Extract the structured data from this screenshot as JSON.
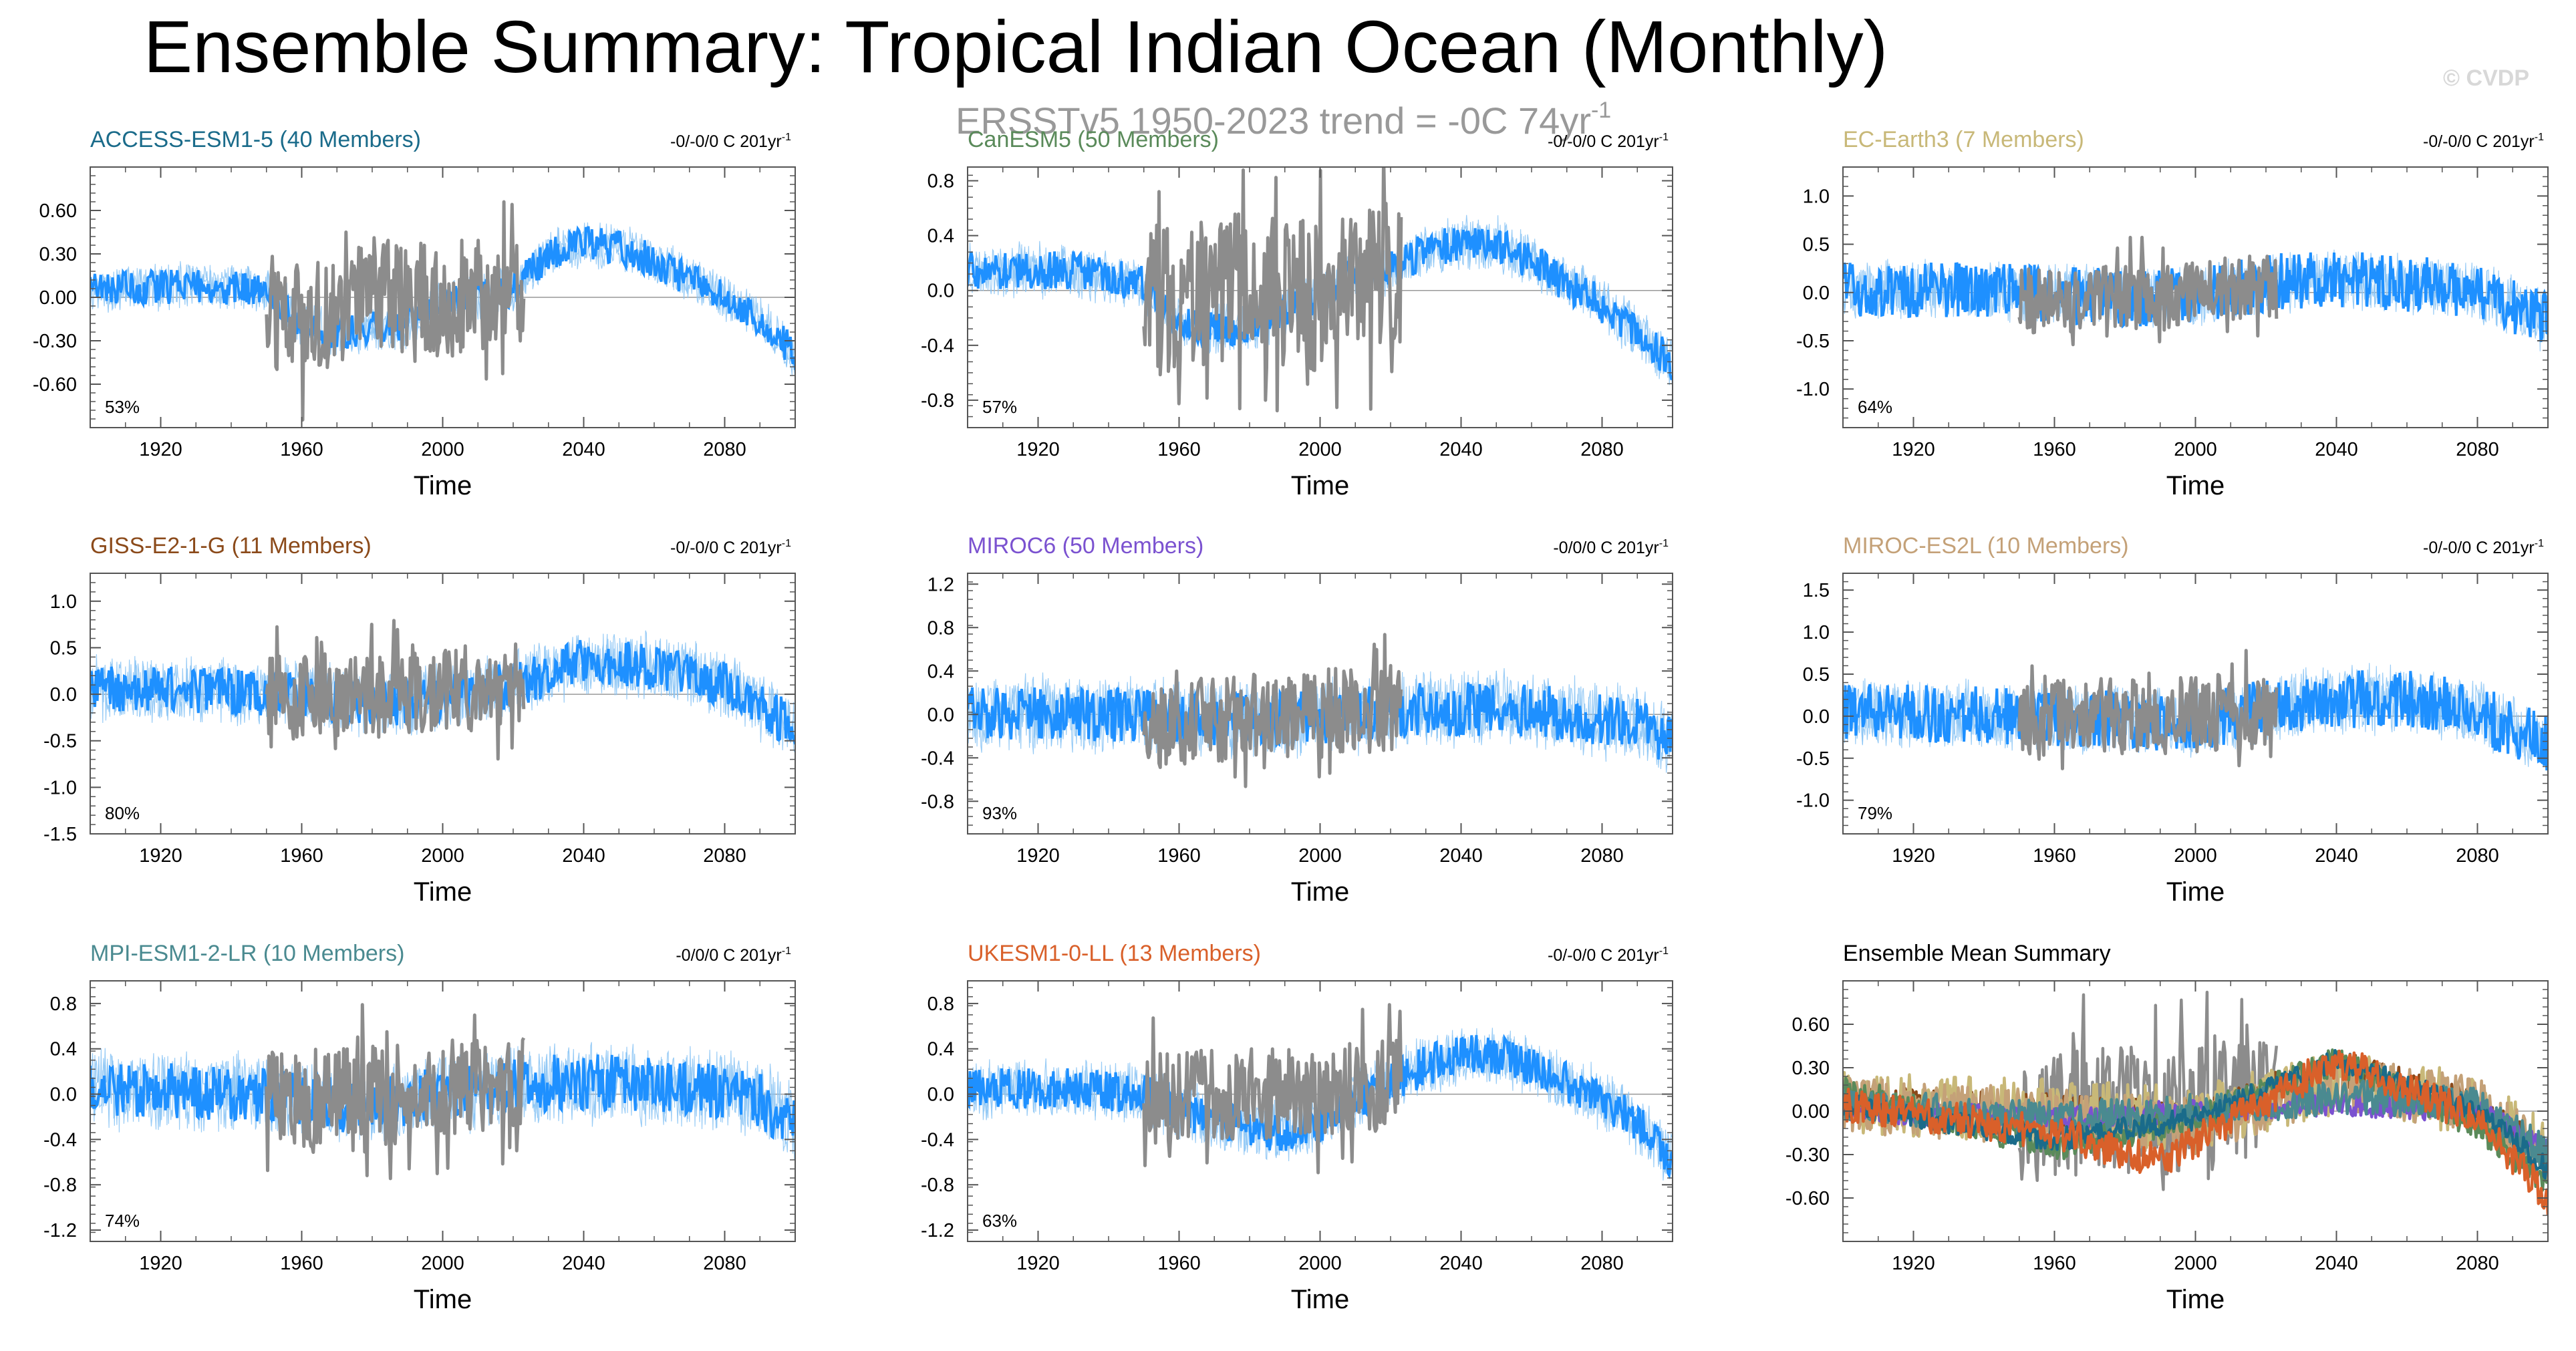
{
  "title": "Ensemble Summary: Tropical Indian Ocean (Monthly)",
  "subtitle": "ERSSTv5 1950-2023 trend = -0C 74yr",
  "subtitle_sup": "-1",
  "watermark": "© CVDP",
  "colors": {
    "ensemble_spread": "#87c3f5",
    "ensemble_mean": "#1e90ff",
    "observations": "#8c8c8c",
    "frame": "#555555",
    "zero_line": "#999999"
  },
  "chart_data": [
    {
      "type": "line",
      "id": "access",
      "title": "ACCESS-ESM1-5 (40 Members)",
      "title_color": "#1a6b8a",
      "trend_label": "-0/-0/0 C 201yr",
      "trend_sup": "-1",
      "percent": "53%",
      "xlabel": "Time",
      "ylabel": "",
      "xlim": [
        1900,
        2100
      ],
      "ylim": [
        -0.9,
        0.9
      ],
      "xticks": [
        "1920",
        "1960",
        "2000",
        "2040",
        "2080"
      ],
      "yticks": [
        -0.6,
        -0.3,
        0.0,
        0.3,
        0.6
      ],
      "ytick_labels": [
        "-0.60",
        "-0.30",
        "0.00",
        "0.30",
        "0.60"
      ],
      "series": [
        {
          "name": "Ensemble mean",
          "x": [
            1900,
            1930,
            1950,
            1955,
            1960,
            1970,
            1980,
            1990,
            2000,
            2010,
            2020,
            2030,
            2040,
            2050,
            2060,
            2070,
            2080,
            2090,
            2100
          ],
          "values": [
            0.05,
            0.08,
            0.05,
            -0.05,
            -0.2,
            -0.25,
            -0.22,
            -0.2,
            -0.05,
            0.0,
            0.05,
            0.3,
            0.38,
            0.35,
            0.25,
            0.12,
            0.0,
            -0.15,
            -0.4
          ]
        },
        {
          "name": "ERSSTv5",
          "x": [
            1950,
            1960,
            1970,
            1980,
            1990,
            2000,
            2010,
            2020,
            2023
          ],
          "values": [
            -0.1,
            -0.2,
            -0.05,
            0.0,
            0.02,
            -0.05,
            0.05,
            0.1,
            0.05
          ],
          "amplitude": 0.4
        }
      ],
      "spread": 0.18,
      "noise": 0.12,
      "seed": 11
    },
    {
      "type": "line",
      "id": "canesm",
      "title": "CanESM5 (50 Members)",
      "title_color": "#5a8a5a",
      "trend_label": "-0/-0/0 C 201yr",
      "trend_sup": "-1",
      "percent": "57%",
      "xlabel": "Time",
      "ylabel": "",
      "xlim": [
        1900,
        2100
      ],
      "ylim": [
        -1.0,
        0.9
      ],
      "xticks": [
        "1920",
        "1960",
        "2000",
        "2040",
        "2080"
      ],
      "yticks": [
        -0.8,
        -0.4,
        0.0,
        0.4,
        0.8
      ],
      "ytick_labels": [
        "-0.8",
        "-0.4",
        "0.0",
        "0.4",
        "0.8"
      ],
      "series": [
        {
          "name": "Ensemble mean",
          "x": [
            1900,
            1930,
            1950,
            1960,
            1970,
            1980,
            1990,
            2000,
            2010,
            2020,
            2030,
            2040,
            2050,
            2060,
            2070,
            2080,
            2090,
            2100
          ],
          "values": [
            0.15,
            0.15,
            0.05,
            -0.25,
            -0.3,
            -0.25,
            -0.15,
            -0.05,
            0.1,
            0.15,
            0.3,
            0.35,
            0.35,
            0.2,
            0.05,
            -0.1,
            -0.3,
            -0.55
          ]
        },
        {
          "name": "ERSSTv5",
          "x": [
            1950,
            1960,
            1970,
            1980,
            1990,
            2000,
            2010,
            2020,
            2023
          ],
          "values": [
            -0.05,
            -0.1,
            0.0,
            0.05,
            0.0,
            -0.05,
            0.05,
            0.1,
            0.05
          ],
          "amplitude": 0.55
        }
      ],
      "spread": 0.22,
      "noise": 0.14,
      "seed": 23
    },
    {
      "type": "line",
      "id": "ecearth",
      "title": "EC-Earth3 (7 Members)",
      "title_color": "#c8b878",
      "trend_label": "-0/-0/0 C 201yr",
      "trend_sup": "-1",
      "percent": "64%",
      "xlabel": "Time",
      "ylabel": "",
      "xlim": [
        1900,
        2100
      ],
      "ylim": [
        -1.4,
        1.3
      ],
      "xticks": [
        "1920",
        "1960",
        "2000",
        "2040",
        "2080"
      ],
      "yticks": [
        -1.0,
        -0.5,
        0.0,
        0.5,
        1.0
      ],
      "ytick_labels": [
        "-1.0",
        "-0.5",
        "0.0",
        "0.5",
        "1.0"
      ],
      "series": [
        {
          "name": "Ensemble mean",
          "x": [
            1900,
            1950,
            1980,
            2000,
            2020,
            2040,
            2060,
            2080,
            2100
          ],
          "values": [
            0.05,
            0.0,
            -0.05,
            -0.05,
            0.1,
            0.15,
            0.1,
            0.0,
            -0.3
          ]
        },
        {
          "name": "ERSSTv5",
          "x": [
            1950,
            1970,
            1990,
            2010,
            2023
          ],
          "values": [
            -0.1,
            -0.05,
            -0.05,
            0.05,
            0.05
          ],
          "amplitude": 0.35
        }
      ],
      "spread": 0.35,
      "noise": 0.3,
      "seed": 37
    },
    {
      "type": "line",
      "id": "giss",
      "title": "GISS-E2-1-G (11 Members)",
      "title_color": "#8b4a1a",
      "trend_label": "-0/-0/0 C 201yr",
      "trend_sup": "-1",
      "percent": "80%",
      "xlabel": "Time",
      "ylabel": "",
      "xlim": [
        1900,
        2100
      ],
      "ylim": [
        -1.5,
        1.3
      ],
      "xticks": [
        "1920",
        "1960",
        "2000",
        "2040",
        "2080"
      ],
      "yticks": [
        -1.5,
        -1.0,
        -0.5,
        0.0,
        0.5,
        1.0
      ],
      "ytick_labels": [
        "-1.5",
        "-1.0",
        "-0.5",
        "0.0",
        "0.5",
        "1.0"
      ],
      "series": [
        {
          "name": "Ensemble mean",
          "x": [
            1900,
            1930,
            1960,
            1980,
            2000,
            2020,
            2040,
            2060,
            2080,
            2100
          ],
          "values": [
            0.05,
            0.05,
            0.0,
            -0.1,
            -0.05,
            0.1,
            0.35,
            0.3,
            0.1,
            -0.35
          ]
        },
        {
          "name": "ERSSTv5",
          "x": [
            1950,
            1970,
            1990,
            2010,
            2023
          ],
          "values": [
            -0.05,
            0.0,
            0.0,
            0.05,
            0.1
          ],
          "amplitude": 0.45
        }
      ],
      "spread": 0.4,
      "noise": 0.25,
      "seed": 41
    },
    {
      "type": "line",
      "id": "miroc6",
      "title": "MIROC6 (50 Members)",
      "title_color": "#7b52d0",
      "trend_label": "-0/0/0 C 201yr",
      "trend_sup": "-1",
      "percent": "93%",
      "xlabel": "Time",
      "ylabel": "",
      "xlim": [
        1900,
        2100
      ],
      "ylim": [
        -1.1,
        1.3
      ],
      "xticks": [
        "1920",
        "1960",
        "2000",
        "2040",
        "2080"
      ],
      "yticks": [
        -0.8,
        -0.4,
        0.0,
        0.4,
        0.8,
        1.2
      ],
      "ytick_labels": [
        "-0.8",
        "-0.4",
        "0.0",
        "0.4",
        "0.8",
        "1.2"
      ],
      "series": [
        {
          "name": "Ensemble mean",
          "x": [
            1900,
            1950,
            1970,
            1990,
            2010,
            2030,
            2050,
            2070,
            2090,
            2100
          ],
          "values": [
            0.0,
            0.0,
            -0.05,
            -0.05,
            0.0,
            0.05,
            0.05,
            0.0,
            -0.1,
            -0.25
          ]
        },
        {
          "name": "ERSSTv5",
          "x": [
            1950,
            1970,
            1990,
            2010,
            2023
          ],
          "values": [
            -0.1,
            -0.05,
            0.0,
            0.05,
            0.05
          ],
          "amplitude": 0.4
        }
      ],
      "spread": 0.4,
      "noise": 0.25,
      "seed": 53
    },
    {
      "type": "line",
      "id": "mirocs",
      "title": "MIROC-ES2L (10 Members)",
      "title_color": "#c4a178",
      "trend_label": "-0/-0/0 C 201yr",
      "trend_sup": "-1",
      "percent": "79%",
      "xlabel": "Time",
      "ylabel": "",
      "xlim": [
        1900,
        2100
      ],
      "ylim": [
        -1.4,
        1.7
      ],
      "xticks": [
        "1920",
        "1960",
        "2000",
        "2040",
        "2080"
      ],
      "yticks": [
        -1.0,
        -0.5,
        0.0,
        0.5,
        1.0,
        1.5
      ],
      "ytick_labels": [
        "-1.0",
        "-0.5",
        "0.0",
        "0.5",
        "1.0",
        "1.5"
      ],
      "series": [
        {
          "name": "Ensemble mean",
          "x": [
            1900,
            1950,
            1980,
            2000,
            2020,
            2040,
            2060,
            2080,
            2100
          ],
          "values": [
            0.05,
            0.0,
            -0.05,
            -0.1,
            0.1,
            0.2,
            0.2,
            0.05,
            -0.35
          ]
        },
        {
          "name": "ERSSTv5",
          "x": [
            1950,
            1970,
            1990,
            2010,
            2023
          ],
          "values": [
            -0.05,
            0.0,
            0.0,
            0.05,
            0.05
          ],
          "amplitude": 0.45
        }
      ],
      "spread": 0.45,
      "noise": 0.35,
      "seed": 67
    },
    {
      "type": "line",
      "id": "mpi",
      "title": "MPI-ESM1-2-LR (10 Members)",
      "title_color": "#4a8a90",
      "trend_label": "-0/0/0 C 201yr",
      "trend_sup": "-1",
      "percent": "74%",
      "xlabel": "Time",
      "ylabel": "",
      "xlim": [
        1900,
        2100
      ],
      "ylim": [
        -1.3,
        1.0
      ],
      "xticks": [
        "1920",
        "1960",
        "2000",
        "2040",
        "2080"
      ],
      "yticks": [
        -1.2,
        -0.8,
        -0.4,
        0.0,
        0.4,
        0.8
      ],
      "ytick_labels": [
        "-1.2",
        "-0.8",
        "-0.4",
        "0.0",
        "0.4",
        "0.8"
      ],
      "series": [
        {
          "name": "Ensemble mean",
          "x": [
            1900,
            1950,
            1970,
            1990,
            2010,
            2030,
            2050,
            2070,
            2090,
            2100
          ],
          "values": [
            0.05,
            0.0,
            -0.1,
            -0.05,
            0.05,
            0.1,
            0.1,
            0.05,
            -0.05,
            -0.3
          ]
        },
        {
          "name": "ERSSTv5",
          "x": [
            1950,
            1970,
            1990,
            2010,
            2023
          ],
          "values": [
            -0.05,
            0.0,
            0.0,
            0.05,
            0.05
          ],
          "amplitude": 0.45
        }
      ],
      "spread": 0.4,
      "noise": 0.25,
      "seed": 71
    },
    {
      "type": "line",
      "id": "ukesm",
      "title": "UKESM1-0-LL (13 Members)",
      "title_color": "#d9602a",
      "trend_label": "-0/-0/0 C 201yr",
      "trend_sup": "-1",
      "percent": "63%",
      "xlabel": "Time",
      "ylabel": "",
      "xlim": [
        1900,
        2100
      ],
      "ylim": [
        -1.3,
        1.0
      ],
      "xticks": [
        "1920",
        "1960",
        "2000",
        "2040",
        "2080"
      ],
      "yticks": [
        -1.2,
        -0.8,
        -0.4,
        0.0,
        0.4,
        0.8
      ],
      "ytick_labels": [
        "-1.2",
        "-0.8",
        "-0.4",
        "0.0",
        "0.4",
        "0.8"
      ],
      "series": [
        {
          "name": "Ensemble mean",
          "x": [
            1900,
            1930,
            1950,
            1960,
            1975,
            1990,
            2000,
            2010,
            2020,
            2030,
            2040,
            2050,
            2060,
            2070,
            2080,
            2090,
            2100
          ],
          "values": [
            0.05,
            0.05,
            0.0,
            -0.15,
            -0.25,
            -0.35,
            -0.25,
            -0.05,
            0.1,
            0.25,
            0.35,
            0.35,
            0.25,
            0.1,
            -0.05,
            -0.25,
            -0.6
          ]
        },
        {
          "name": "ERSSTv5",
          "x": [
            1950,
            1970,
            1990,
            2010,
            2023
          ],
          "values": [
            -0.05,
            0.0,
            0.0,
            0.05,
            0.1
          ],
          "amplitude": 0.4
        }
      ],
      "spread": 0.3,
      "noise": 0.18,
      "seed": 83
    },
    {
      "type": "line",
      "id": "summary",
      "title": "Ensemble Mean Summary",
      "title_color": "#000000",
      "trend_label": "",
      "trend_sup": "",
      "percent": "",
      "xlabel": "Time",
      "ylabel": "",
      "xlim": [
        1900,
        2100
      ],
      "ylim": [
        -0.9,
        0.9
      ],
      "xticks": [
        "1920",
        "1960",
        "2000",
        "2040",
        "2080"
      ],
      "yticks": [
        -0.6,
        -0.3,
        0.0,
        0.3,
        0.6
      ],
      "ytick_labels": [
        "-0.60",
        "-0.30",
        "0.00",
        "0.30",
        "0.60"
      ],
      "series": [
        {
          "name": "ERSSTv5",
          "color": "#8c8c8c",
          "x": [
            1950,
            1970,
            1990,
            2010,
            2023
          ],
          "values": [
            -0.05,
            0.0,
            0.0,
            0.05,
            0.05
          ],
          "amplitude": 0.45
        },
        {
          "name": "GISS-E2-1-G",
          "color": "#8b4a1a",
          "x": [
            1900,
            1960,
            2000,
            2040,
            2080,
            2100
          ],
          "values": [
            0.05,
            0.0,
            -0.05,
            0.3,
            0.05,
            -0.35
          ],
          "amplitude": 0.12
        },
        {
          "name": "EC-Earth3",
          "color": "#c8b878",
          "x": [
            1900,
            1960,
            2000,
            2040,
            2080,
            2100
          ],
          "values": [
            0.05,
            0.0,
            -0.05,
            0.2,
            0.05,
            -0.3
          ],
          "amplitude": 0.22
        },
        {
          "name": "MIROC-ES2L",
          "color": "#c4a178",
          "x": [
            1900,
            1960,
            2000,
            2040,
            2080,
            2100
          ],
          "values": [
            0.05,
            -0.05,
            -0.1,
            0.2,
            0.05,
            -0.35
          ],
          "amplitude": 0.2
        },
        {
          "name": "MIROC6",
          "color": "#7b52d0",
          "x": [
            1900,
            1960,
            2000,
            2040,
            2080,
            2100
          ],
          "values": [
            0.0,
            -0.05,
            0.0,
            0.05,
            0.0,
            -0.25
          ],
          "amplitude": 0.08
        },
        {
          "name": "CanESM5",
          "color": "#5a8a5a",
          "x": [
            1900,
            1960,
            2000,
            2040,
            2080,
            2100
          ],
          "values": [
            0.15,
            -0.25,
            -0.05,
            0.35,
            -0.1,
            -0.5
          ],
          "amplitude": 0.1
        },
        {
          "name": "MPI-ESM1-2-LR",
          "color": "#4a8a90",
          "x": [
            1900,
            1960,
            2000,
            2040,
            2080,
            2100
          ],
          "values": [
            0.05,
            -0.05,
            0.0,
            0.1,
            0.05,
            -0.3
          ],
          "amplitude": 0.12
        },
        {
          "name": "ACCESS-ESM1-5",
          "color": "#1a6b8a",
          "x": [
            1900,
            1960,
            2000,
            2040,
            2080,
            2100
          ],
          "values": [
            0.05,
            -0.2,
            -0.05,
            0.35,
            0.0,
            -0.4
          ],
          "amplitude": 0.08
        },
        {
          "name": "UKESM1-0-LL",
          "color": "#d9602a",
          "x": [
            1900,
            1960,
            1990,
            2040,
            2080,
            2100
          ],
          "values": [
            0.05,
            -0.15,
            -0.35,
            0.35,
            -0.05,
            -0.6
          ],
          "amplitude": 0.12
        }
      ],
      "spread": 0,
      "noise": 0,
      "seed": 97
    }
  ]
}
